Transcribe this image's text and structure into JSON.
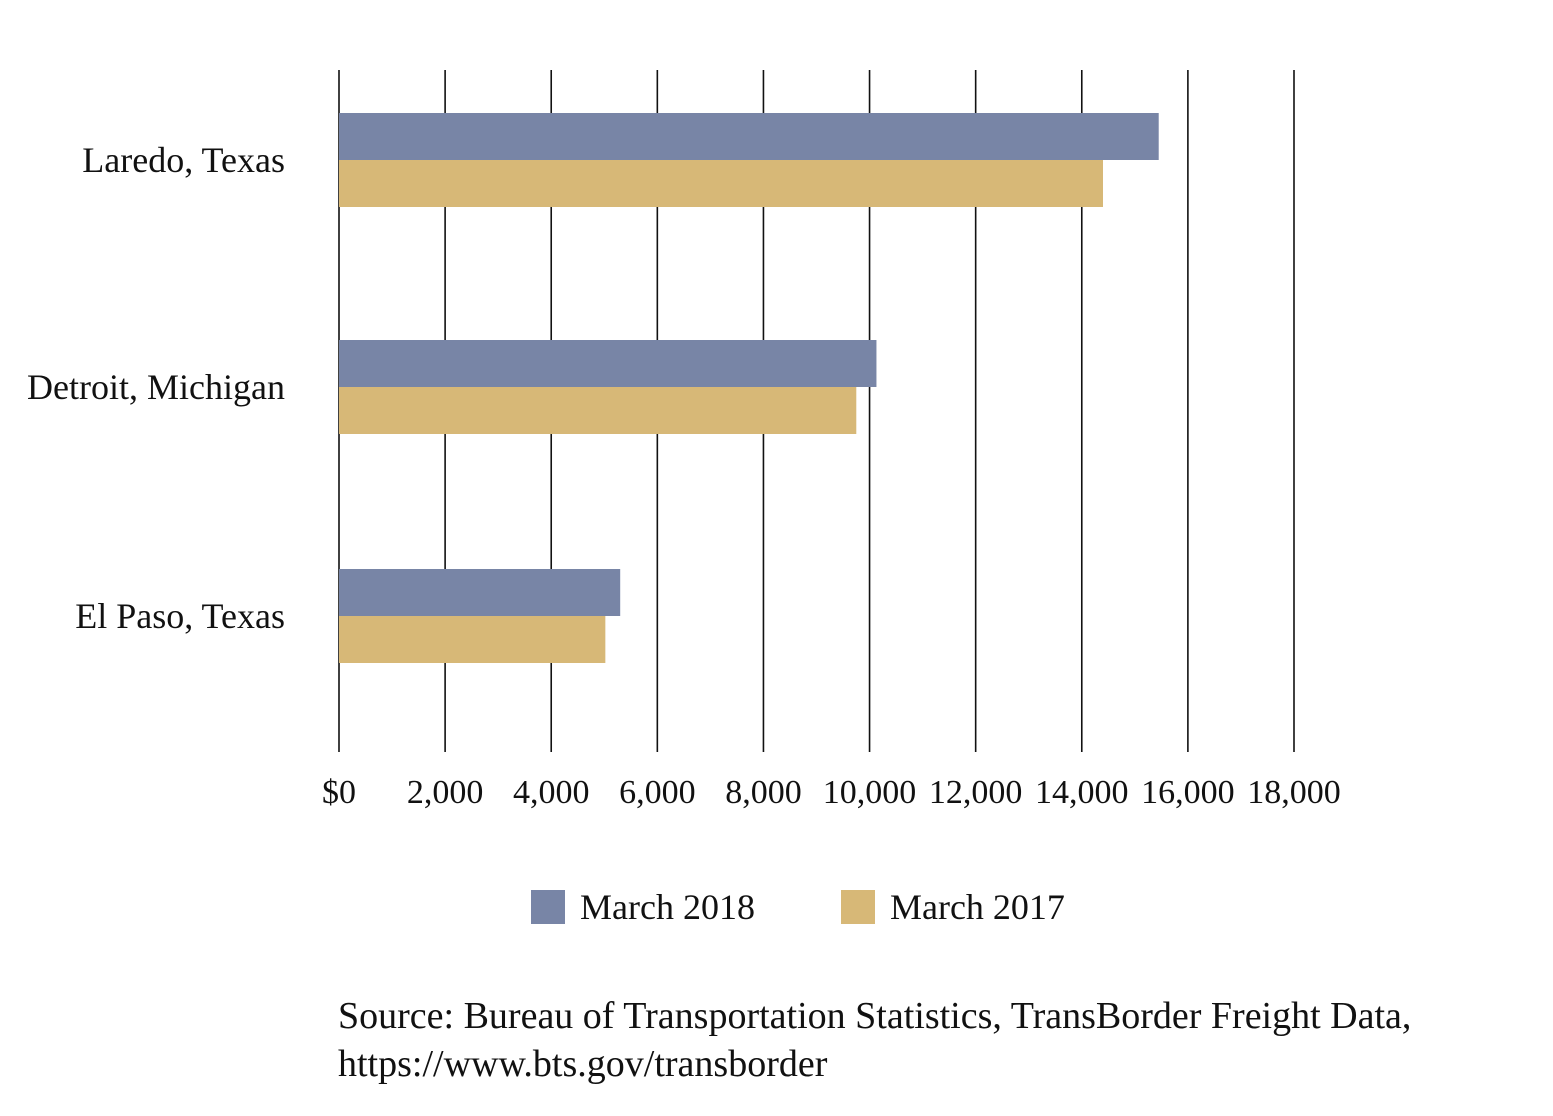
{
  "colors": {
    "series_2018": "#7885a6",
    "series_2017": "#d7b877",
    "gridline": "#111111"
  },
  "chart_data": {
    "type": "bar",
    "orientation": "horizontal",
    "categories": [
      "Laredo, Texas",
      "Detroit, Michigan",
      "El Paso, Texas"
    ],
    "series": [
      {
        "name": "March 2018",
        "values": [
          15450,
          10130,
          5300
        ]
      },
      {
        "name": "March 2017",
        "values": [
          14400,
          9750,
          5020
        ]
      }
    ],
    "xlim": [
      0,
      18000
    ],
    "x_ticks": [
      {
        "value": 0,
        "label": "$0"
      },
      {
        "value": 2000,
        "label": "2,000"
      },
      {
        "value": 4000,
        "label": "4,000"
      },
      {
        "value": 6000,
        "label": "6,000"
      },
      {
        "value": 8000,
        "label": "8,000"
      },
      {
        "value": 10000,
        "label": "10,000"
      },
      {
        "value": 12000,
        "label": "12,000"
      },
      {
        "value": 14000,
        "label": "14,000"
      },
      {
        "value": 16000,
        "label": "16,000"
      },
      {
        "value": 18000,
        "label": "18,000"
      }
    ],
    "grid": "vertical",
    "legend_position": "bottom"
  },
  "legend": [
    {
      "label": "March 2018"
    },
    {
      "label": "March 2017"
    }
  ],
  "source": {
    "line1": "Source: Bureau of Transportation Statistics, TransBorder Freight Data,",
    "line2": "https://www.bts.gov/transborder"
  }
}
